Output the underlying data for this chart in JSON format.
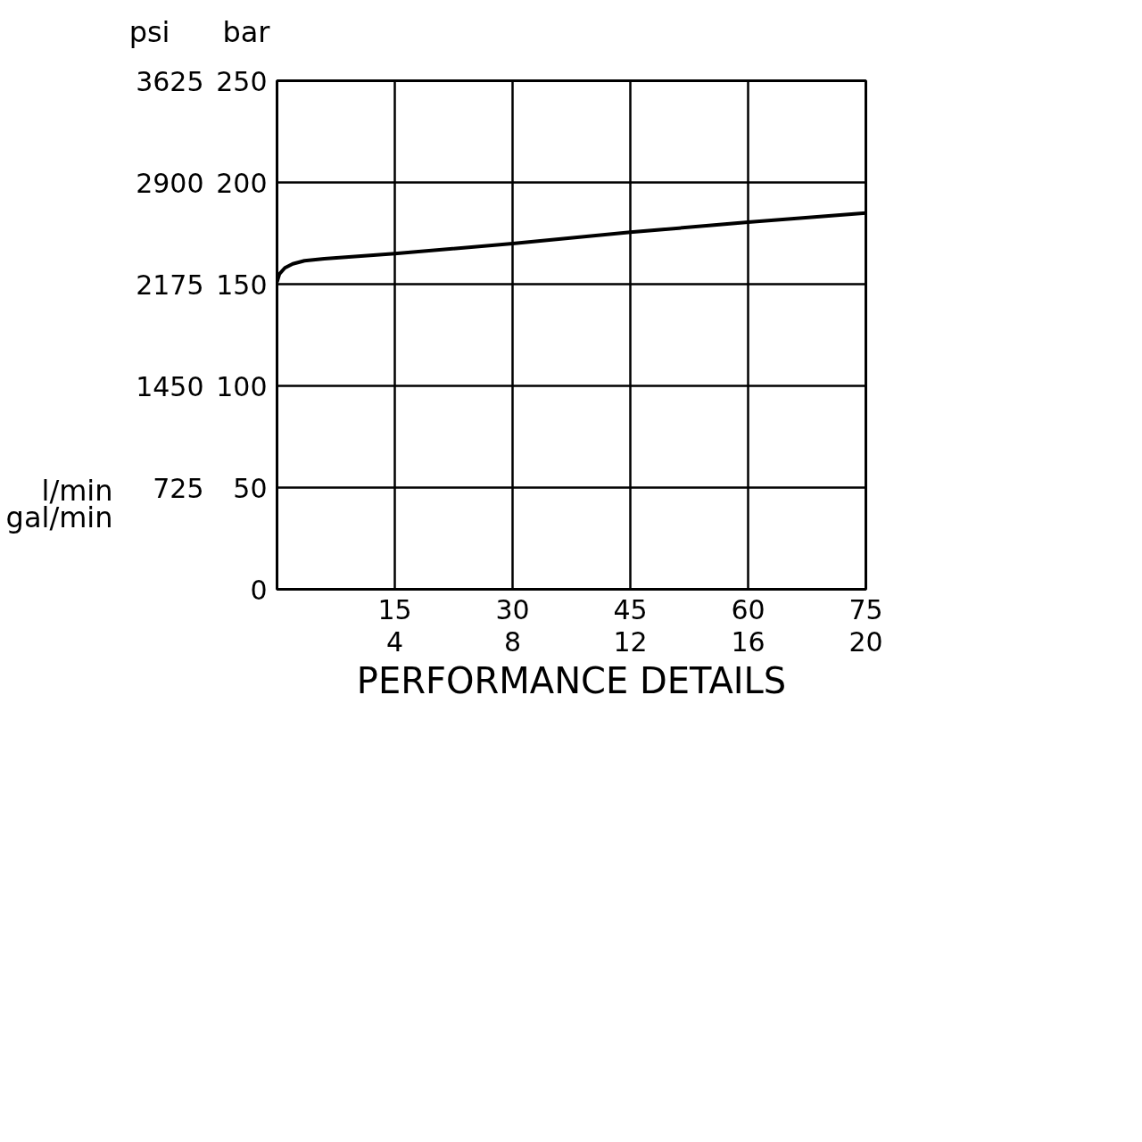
{
  "chart_data": {
    "type": "line",
    "title": "PERFORMANCE DETAILS",
    "xlabel": "l/min",
    "x2label": "gal/min",
    "ylabel": "bar",
    "y2label": "psi",
    "x": [
      0,
      0.3,
      1,
      2,
      3.5,
      6,
      15,
      30,
      45,
      60,
      75
    ],
    "series": [
      {
        "color": "#000000",
        "values": [
          151,
          155,
          158,
          160,
          161.5,
          162.5,
          165,
          170,
          175.5,
          180.5,
          185
        ]
      }
    ],
    "xlim": [
      0,
      75
    ],
    "xticks": [
      15,
      30,
      45,
      60,
      75
    ],
    "x2lim": [
      0,
      20
    ],
    "x2ticks": [
      4,
      8,
      12,
      16,
      20
    ],
    "ylim": [
      0,
      250
    ],
    "yticks": [
      0,
      50,
      100,
      150,
      200,
      250
    ],
    "y2lim": [
      0,
      3625
    ],
    "y2ticks": [
      725,
      1450,
      2175,
      2900,
      3625
    ],
    "grid": true,
    "marker": "none",
    "line_style": "solid"
  }
}
